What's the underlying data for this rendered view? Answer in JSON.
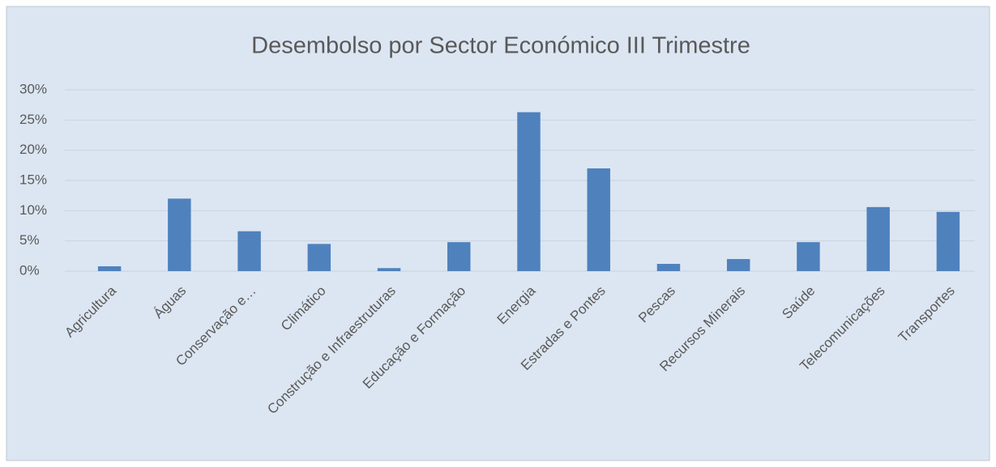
{
  "chart_data": {
    "type": "bar",
    "title": "Desembolso por Sector Económico III Trimestre",
    "categories": [
      "Agricultura",
      "Águas",
      "Conservação e…",
      "Climático",
      "Construção e Infraestruturas",
      "Educação e Formação",
      "Energia",
      "Estradas e Pontes",
      "Pescas",
      "Recursos Minerais",
      "Saúde",
      "Telecomunicações",
      "Transportes"
    ],
    "values": [
      0.8,
      12.0,
      6.6,
      4.5,
      0.5,
      4.8,
      26.3,
      17.0,
      1.2,
      2.0,
      4.8,
      10.6,
      9.8
    ],
    "color": "#4f81bd",
    "ylim": [
      0,
      30
    ],
    "yticks": [
      {
        "value": 0,
        "label": "0%"
      },
      {
        "value": 5,
        "label": "5%"
      },
      {
        "value": 10,
        "label": "10%"
      },
      {
        "value": 15,
        "label": "15%"
      },
      {
        "value": 20,
        "label": "20%"
      },
      {
        "value": 25,
        "label": "25%"
      },
      {
        "value": 30,
        "label": "30%"
      }
    ],
    "grid": true
  }
}
